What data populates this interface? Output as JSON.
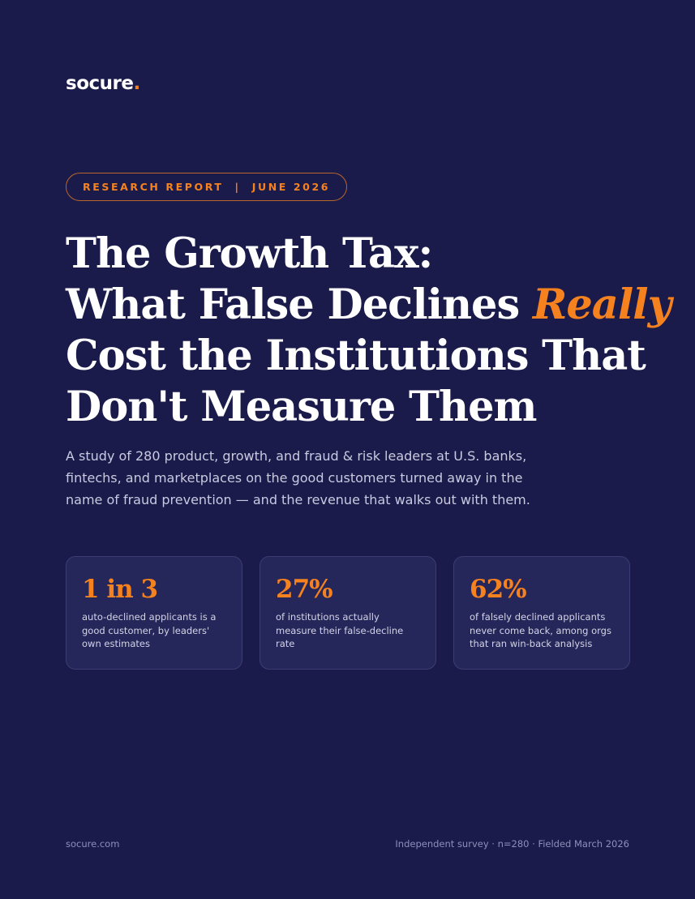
{
  "header": {
    "logo": "socure",
    "logo_dot": "."
  },
  "badge": {
    "label": "RESEARCH REPORT",
    "separator": "|",
    "date": "JUNE 2026"
  },
  "title": {
    "line1": "The Growth Tax:",
    "line2": "What False Declines",
    "emphasis": "Really",
    "line3": "Cost the Institutions That",
    "line4": "Don't Measure Them"
  },
  "subtitle": "A study of 280 product, growth, and fraud & risk leaders at U.S. banks, fintechs, and marketplaces on the good customers turned away in the name of fraud prevention — and the revenue that walks out with them.",
  "stats": [
    {
      "value": "1 in 3",
      "description": "auto-declined applicants is a good customer, by leaders' own estimates"
    },
    {
      "value": "27%",
      "description": "of institutions actually measure their false-decline rate"
    },
    {
      "value": "62%",
      "description": "of falsely declined applicants never come back, among orgs that ran win-back analysis"
    }
  ],
  "footer": {
    "left": "socure.com",
    "right": "Independent survey · n=280 · Fielded March 2026"
  }
}
